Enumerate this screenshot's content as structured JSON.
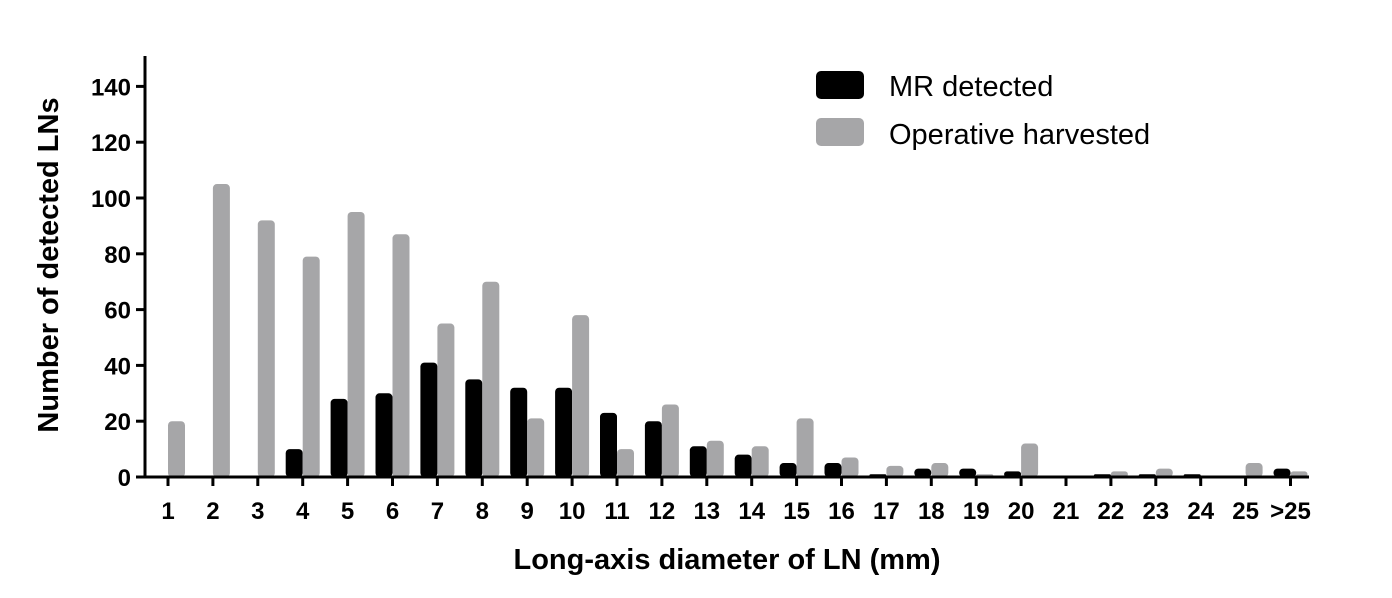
{
  "chart_data": {
    "type": "bar",
    "title": "",
    "xlabel": "Long-axis diameter of LN (mm)",
    "ylabel": "Number of detected LNs",
    "categories": [
      "1",
      "2",
      "3",
      "4",
      "5",
      "6",
      "7",
      "8",
      "9",
      "10",
      "11",
      "12",
      "13",
      "14",
      "15",
      "16",
      "17",
      "18",
      "19",
      "20",
      "21",
      "22",
      "23",
      "24",
      "25",
      ">25"
    ],
    "series": [
      {
        "name": "MR detected",
        "color": "#000000",
        "values": [
          0,
          0,
          0,
          10,
          28,
          30,
          41,
          35,
          32,
          32,
          23,
          20,
          11,
          8,
          5,
          5,
          1,
          3,
          3,
          2,
          0,
          1,
          1,
          1,
          0,
          3
        ]
      },
      {
        "name": "Operative harvested",
        "color": "#a6a6a8",
        "values": [
          20,
          105,
          92,
          79,
          95,
          87,
          55,
          70,
          21,
          58,
          10,
          26,
          13,
          11,
          21,
          7,
          4,
          5,
          1,
          12,
          0,
          2,
          3,
          0,
          5,
          2
        ]
      }
    ],
    "ylim": [
      0,
      150
    ],
    "yticks": [
      0,
      20,
      40,
      60,
      80,
      100,
      120,
      140
    ],
    "grid": false,
    "legend_position": "top-right"
  }
}
